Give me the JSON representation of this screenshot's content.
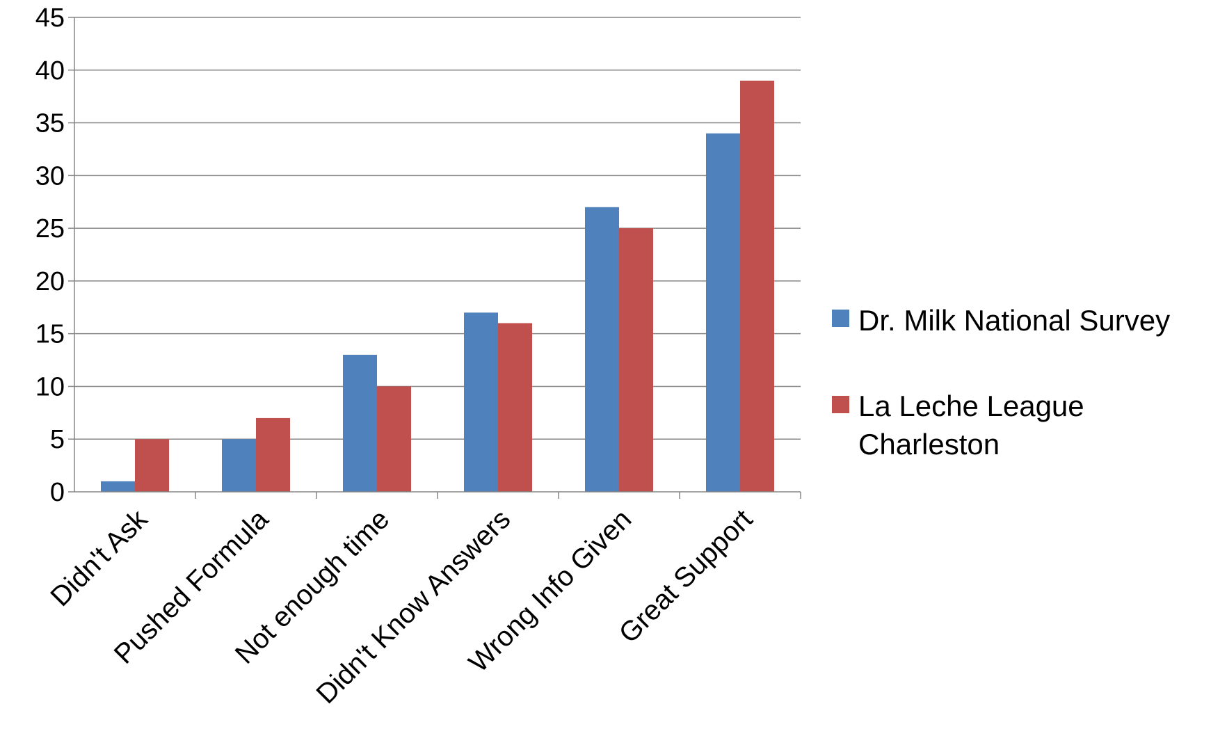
{
  "chart_data": {
    "type": "bar",
    "categories": [
      "Didn't Ask",
      "Pushed Formula",
      "Not enough time",
      "Didn't Know Answers",
      "Wrong Info Given",
      "Great Support"
    ],
    "series": [
      {
        "name": "Dr. Milk National Survey",
        "color": "#4F81BD",
        "values": [
          1,
          5,
          13,
          17,
          27,
          34
        ]
      },
      {
        "name": "La Leche League Charleston",
        "color": "#C0504D",
        "values": [
          5,
          7,
          10,
          16,
          25,
          39
        ]
      }
    ],
    "ylim": [
      0,
      45
    ],
    "yticks": [
      "0",
      "5",
      "10",
      "15",
      "20",
      "25",
      "30",
      "35",
      "40",
      "45"
    ],
    "grid": true,
    "legend_position": "right",
    "legend_labels": [
      {
        "lines": [
          "Dr. Milk National Survey"
        ]
      },
      {
        "lines": [
          "La Leche League",
          "Charleston"
        ]
      }
    ]
  }
}
